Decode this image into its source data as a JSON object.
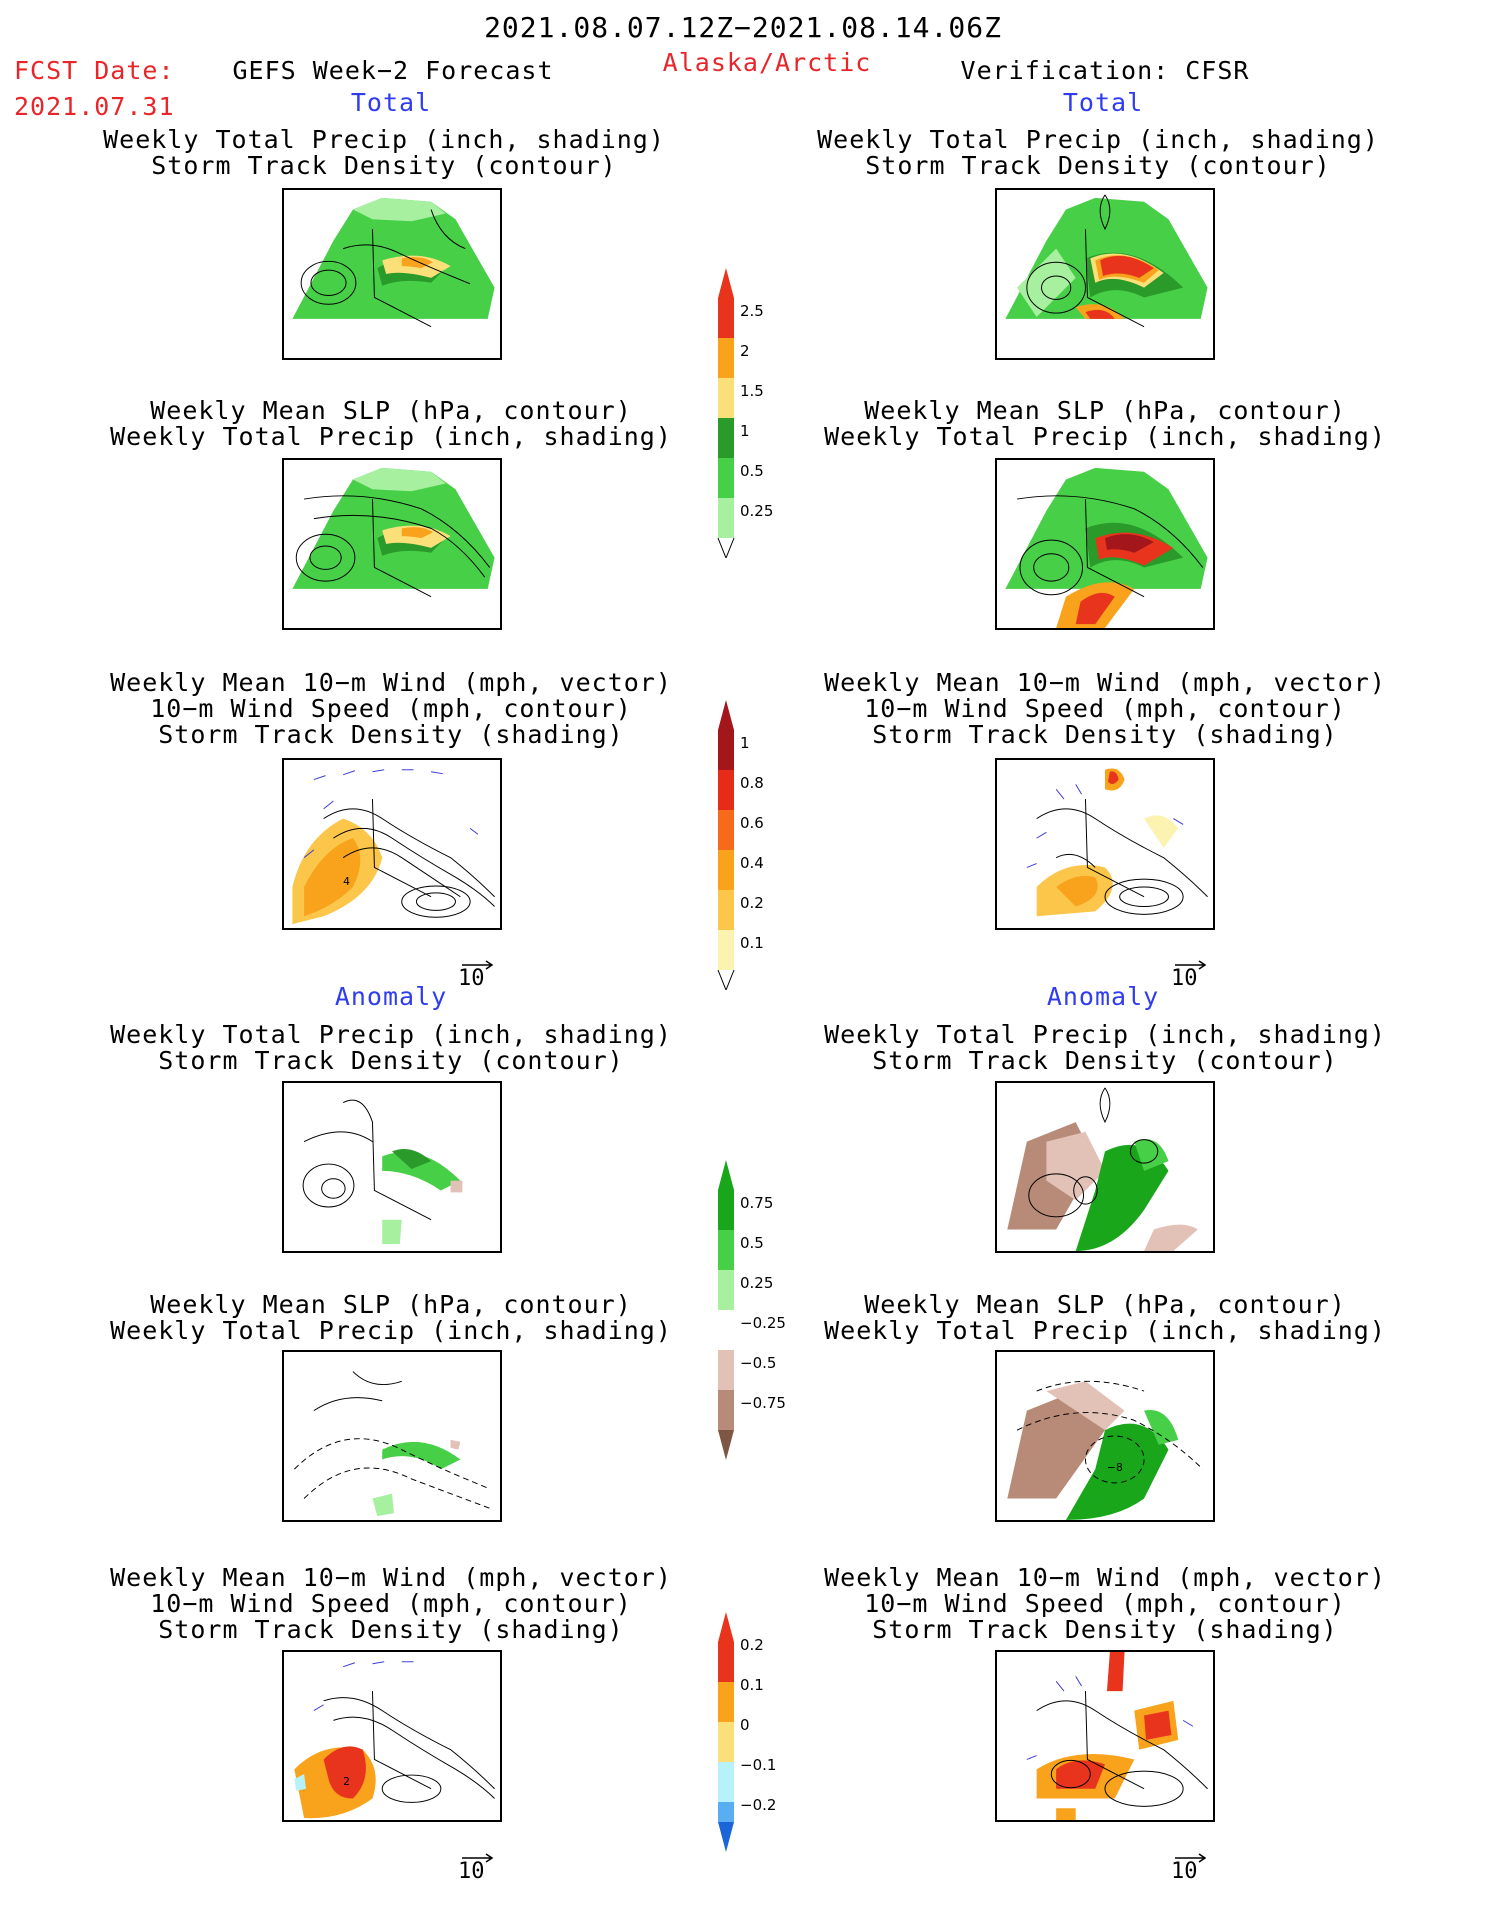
{
  "header": {
    "date_range": "2021.08.07.12Z−2021.08.14.06Z",
    "fcst_date_label": "FCST Date:",
    "fcst_date_value": "2021.07.31",
    "product": "GEFS Week−2 Forecast",
    "region": "Alaska/Arctic",
    "verification": "Verification: CFSR"
  },
  "sections": {
    "total_label": "Total",
    "anomaly_label": "Anomaly"
  },
  "captions": {
    "precip_storm": [
      "Weekly Total Precip (inch, shading)",
      "Storm Track Density (contour)"
    ],
    "slp_precip": [
      "Weekly Mean SLP (hPa, contour)",
      "Weekly Total Precip (inch, shading)"
    ],
    "wind_storm": [
      "Weekly Mean 10−m Wind (mph, vector)",
      "10−m Wind Speed (mph, contour)",
      "Storm Track Density (shading)"
    ]
  },
  "vector_reference": "10",
  "contour_labels": {
    "wind_total_left": "4",
    "wind_anom_left": "2",
    "slp_anom_right": "−8"
  },
  "colorbars": {
    "precip_total": {
      "labels": [
        "2.5",
        "2",
        "1.5",
        "1",
        "0.5",
        "0.25"
      ],
      "colors": [
        "#e8341c",
        "#f9a21c",
        "#fbe07a",
        "#2a9a2a",
        "#48cf48",
        "#a6f0a0"
      ]
    },
    "storm_total": {
      "labels": [
        "1",
        "0.8",
        "0.6",
        "0.4",
        "0.2",
        "0.1"
      ],
      "colors": [
        "#a3161c",
        "#e62b18",
        "#f66a1c",
        "#f9a21c",
        "#fbc64a",
        "#fdf3b0"
      ]
    },
    "precip_anom": {
      "labels": [
        "0.75",
        "0.5",
        "0.25",
        "−0.25",
        "−0.5",
        "−0.75"
      ],
      "colors": [
        "#1aa61a",
        "#48cf48",
        "#a6f0a0",
        "#ffffff",
        "#e2c1b6",
        "#b88a78",
        "#7e5644"
      ]
    },
    "storm_anom": {
      "labels": [
        "0.2",
        "0.1",
        "0",
        "−0.1",
        "−0.2"
      ],
      "colors": [
        "#e8341c",
        "#f9a21c",
        "#fbe07a",
        "#b7f2fa",
        "#58aef0",
        "#1a66d8"
      ]
    }
  },
  "theme_colors": {
    "title_red": "#e8262a",
    "section_blue": "#2f3cf0"
  }
}
